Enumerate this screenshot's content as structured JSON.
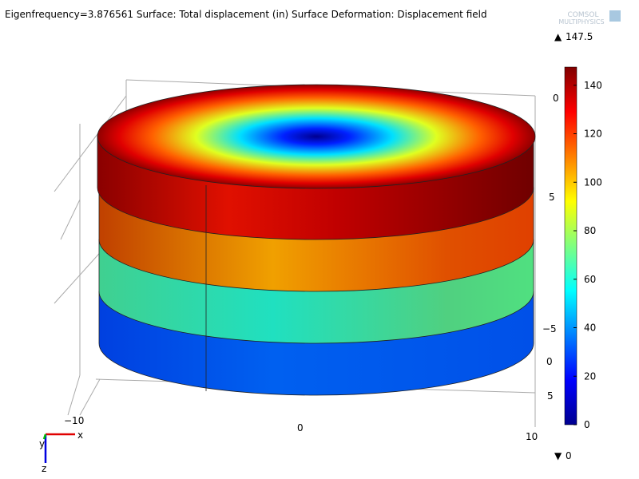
{
  "title": "Eigenfrequency=3.876561  Surface: Total displacement (in)   Surface Deformation: Displacement field",
  "logo": {
    "line1": "COMSOL",
    "line2": "MULTIPHYSICS"
  },
  "colorbar": {
    "max": 147.5,
    "min": 0,
    "lim": [
      0,
      147.5
    ],
    "ticks": [
      0,
      20,
      40,
      60,
      80,
      100,
      120,
      140
    ]
  },
  "axis_labels": [
    "−10",
    "0",
    "10",
    "0",
    "5",
    "−5",
    "0",
    "5"
  ],
  "triad": {
    "x": "x",
    "y": "y",
    "z": "z"
  }
}
